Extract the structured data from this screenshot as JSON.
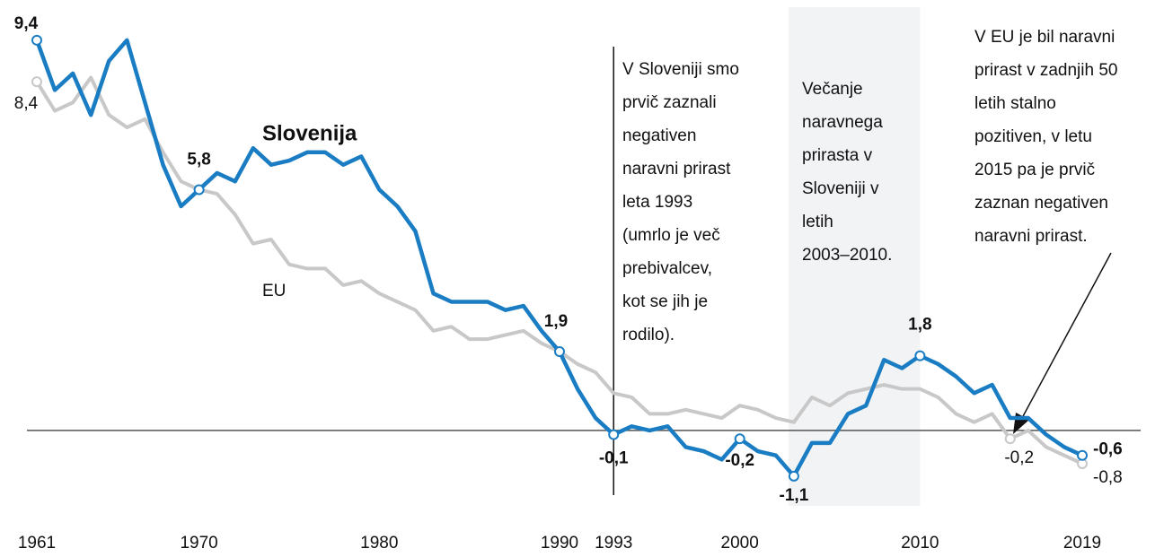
{
  "chart_data": {
    "type": "line",
    "x": [
      1961,
      1962,
      1963,
      1964,
      1965,
      1966,
      1967,
      1968,
      1969,
      1970,
      1971,
      1972,
      1973,
      1974,
      1975,
      1976,
      1977,
      1978,
      1979,
      1980,
      1981,
      1982,
      1983,
      1984,
      1985,
      1986,
      1987,
      1988,
      1989,
      1990,
      1991,
      1992,
      1993,
      1994,
      1995,
      1996,
      1997,
      1998,
      1999,
      2000,
      2001,
      2002,
      2003,
      2004,
      2005,
      2006,
      2007,
      2008,
      2009,
      2010,
      2011,
      2012,
      2013,
      2014,
      2015,
      2016,
      2017,
      2018,
      2019
    ],
    "series": [
      {
        "name": "Slovenija",
        "color": "#1a7dc4",
        "values": [
          9.4,
          8.2,
          8.6,
          7.6,
          8.9,
          9.4,
          7.9,
          6.4,
          5.4,
          5.8,
          6.2,
          6.0,
          6.8,
          6.4,
          6.5,
          6.7,
          6.7,
          6.4,
          6.6,
          5.8,
          5.4,
          4.8,
          3.3,
          3.1,
          3.1,
          3.1,
          2.9,
          3.0,
          2.4,
          1.9,
          1.0,
          0.3,
          -0.1,
          0.1,
          0.0,
          0.1,
          -0.4,
          -0.5,
          -0.7,
          -0.2,
          -0.5,
          -0.6,
          -1.1,
          -0.3,
          -0.3,
          0.4,
          0.6,
          1.7,
          1.5,
          1.8,
          1.6,
          1.3,
          0.9,
          1.1,
          0.3,
          0.3,
          -0.1,
          -0.4,
          -0.6
        ],
        "value_labels": [
          "9,4",
          null,
          null,
          null,
          null,
          null,
          null,
          null,
          null,
          "5,8",
          null,
          null,
          null,
          null,
          null,
          null,
          null,
          null,
          null,
          null,
          null,
          null,
          null,
          null,
          null,
          null,
          null,
          null,
          null,
          "1,9",
          null,
          null,
          "-0,1",
          null,
          null,
          null,
          null,
          null,
          null,
          "-0,2",
          null,
          null,
          "-1,1",
          null,
          null,
          null,
          null,
          null,
          null,
          "1,8",
          null,
          null,
          null,
          null,
          null,
          null,
          null,
          null,
          "-0,6"
        ]
      },
      {
        "name": "EU",
        "color": "#c8c8c8",
        "values": [
          8.4,
          7.7,
          7.9,
          8.5,
          7.6,
          7.3,
          7.5,
          6.7,
          6.0,
          5.8,
          5.7,
          5.2,
          4.5,
          4.6,
          4.0,
          3.9,
          3.9,
          3.5,
          3.6,
          3.3,
          3.1,
          2.9,
          2.4,
          2.5,
          2.2,
          2.2,
          2.3,
          2.4,
          2.1,
          1.9,
          1.6,
          1.4,
          0.9,
          0.8,
          0.4,
          0.4,
          0.5,
          0.4,
          0.3,
          0.6,
          0.5,
          0.3,
          0.2,
          0.8,
          0.6,
          0.9,
          1.0,
          1.1,
          1.0,
          1.0,
          0.8,
          0.4,
          0.2,
          0.4,
          -0.2,
          0.0,
          -0.4,
          -0.6,
          -0.8
        ],
        "value_labels": [
          "8,4",
          null,
          null,
          null,
          null,
          null,
          null,
          null,
          null,
          null,
          null,
          null,
          null,
          null,
          null,
          null,
          null,
          null,
          null,
          null,
          null,
          null,
          null,
          null,
          null,
          null,
          null,
          null,
          null,
          null,
          null,
          null,
          null,
          null,
          null,
          null,
          null,
          null,
          null,
          null,
          null,
          null,
          null,
          null,
          null,
          null,
          null,
          null,
          null,
          null,
          null,
          null,
          null,
          null,
          "-0,2",
          null,
          null,
          null,
          "-0,8"
        ]
      }
    ],
    "xlim": [
      1961,
      2019
    ],
    "xticks": [
      1961,
      1970,
      1980,
      1990,
      1993,
      2000,
      2010,
      2019
    ],
    "ylim": [
      -1.6,
      9.8
    ],
    "vline": 1993,
    "shaded_range": [
      2003,
      2010
    ],
    "annotations": [
      [
        "V Sloveniji  smo",
        "prvič zaznali",
        "negativen",
        "naravni prirast",
        "leta  1993",
        "(umrlo je več",
        "prebivalcev,",
        "kot se jih je",
        "rodilo)."
      ],
      [
        "Večanje",
        "naravnega",
        "prirasta v",
        "Sloveniji  v",
        "letih",
        "2003–2010."
      ],
      [
        "V EU je bil naravni",
        "prirast v zadnjih 50",
        "letih  stalno",
        "pozitiven,  v letu",
        "2015  pa je prvič",
        "zaznan negativen",
        "naravni prirast."
      ]
    ]
  }
}
